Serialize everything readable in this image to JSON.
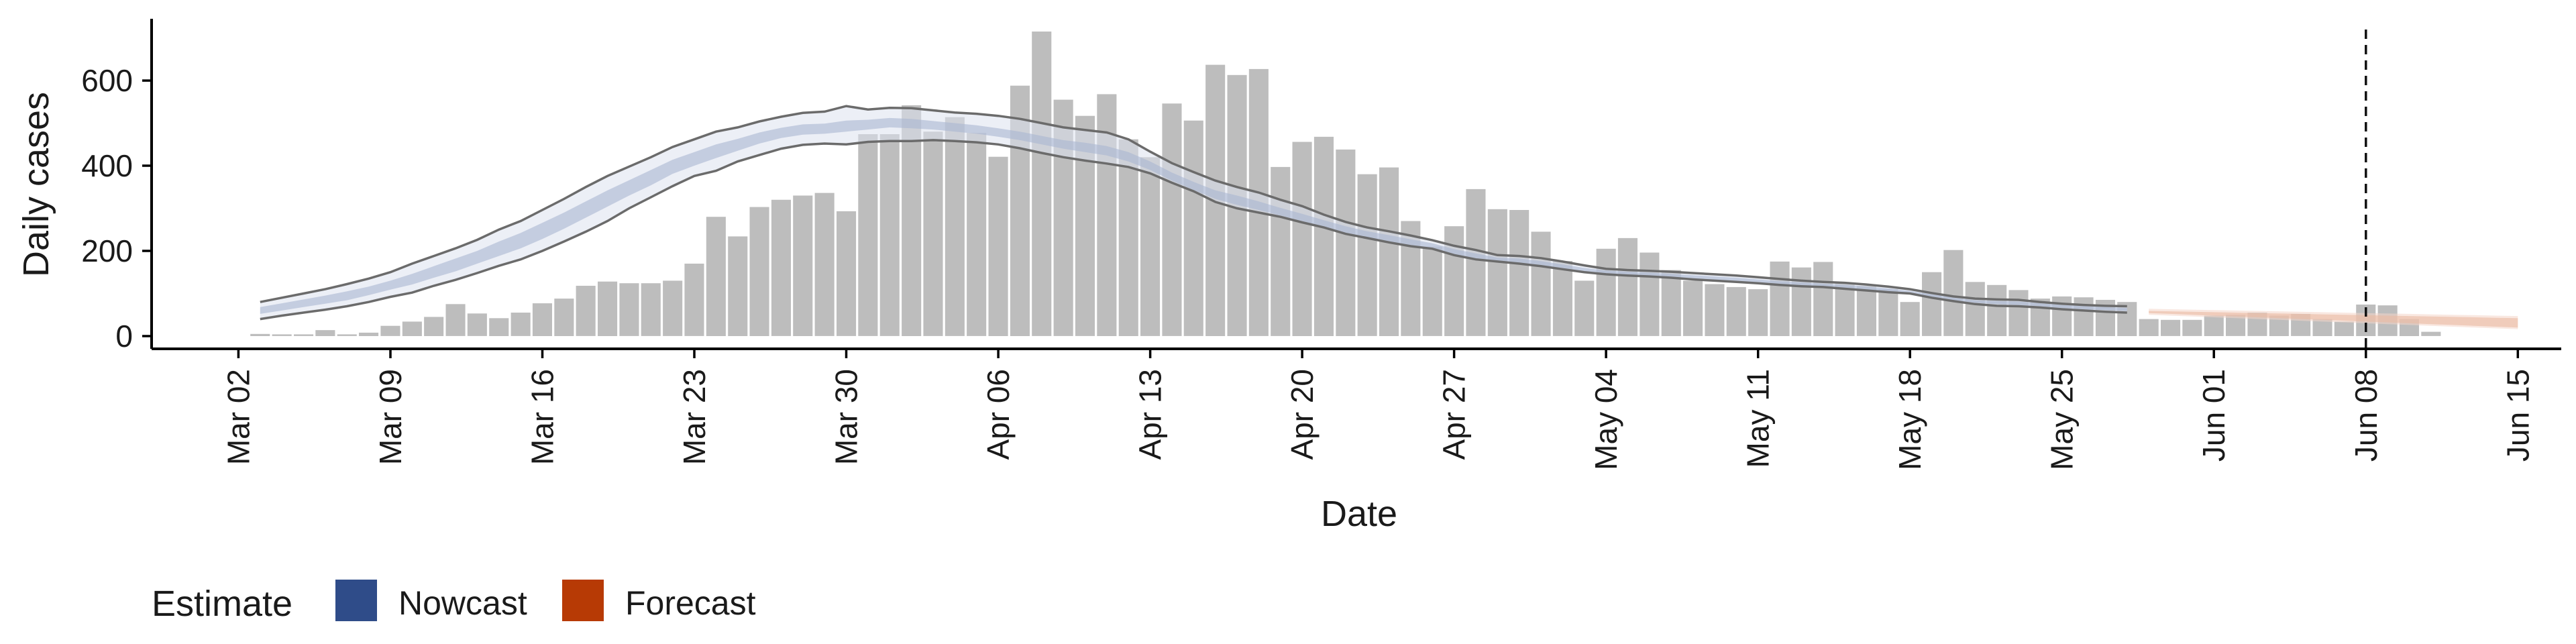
{
  "chart_data": {
    "type": "bar",
    "xlabel": "Date",
    "ylabel": "Daily cases",
    "ylim": [
      -30,
      745
    ],
    "y_ticks": [
      0,
      200,
      400,
      600
    ],
    "x_range": [
      "2020-02-27",
      "2020-06-17"
    ],
    "x_ticks": [
      "2020-03-02",
      "2020-03-09",
      "2020-03-16",
      "2020-03-23",
      "2020-03-30",
      "2020-04-06",
      "2020-04-13",
      "2020-04-20",
      "2020-04-27",
      "2020-05-04",
      "2020-05-11",
      "2020-05-18",
      "2020-05-25",
      "2020-06-01",
      "2020-06-08",
      "2020-06-15"
    ],
    "x_tick_labels": [
      "Mar 02",
      "Mar 09",
      "Mar 16",
      "Mar 23",
      "Mar 30",
      "Apr 06",
      "Apr 13",
      "Apr 20",
      "Apr 27",
      "May 04",
      "May 11",
      "May 18",
      "May 25",
      "Jun 01",
      "Jun 08",
      "Jun 15"
    ],
    "vline_date": "2020-06-08",
    "bars": {
      "start_date": "2020-03-03",
      "color": "#bdbdbd",
      "values": [
        5,
        4,
        4,
        14,
        4,
        8,
        24,
        34,
        45,
        75,
        53,
        42,
        55,
        77,
        88,
        118,
        128,
        124,
        124,
        130,
        170,
        280,
        234,
        303,
        320,
        330,
        336,
        293,
        474,
        474,
        542,
        480,
        514,
        477,
        421,
        588,
        715,
        555,
        517,
        568,
        462,
        420,
        546,
        506,
        637,
        613,
        627,
        397,
        456,
        468,
        438,
        380,
        396,
        270,
        210,
        258,
        345,
        298,
        296,
        245,
        176,
        130,
        205,
        230,
        196,
        155,
        130,
        122,
        115,
        110,
        175,
        161,
        174,
        126,
        118,
        110,
        80,
        150,
        202,
        127,
        120,
        108,
        88,
        93,
        91,
        85,
        80,
        40,
        38,
        38,
        48,
        50,
        55,
        48,
        52,
        40,
        34,
        74,
        72,
        40,
        10
      ]
    },
    "series": [
      {
        "name": "Nowcast",
        "legend_color": "#2f4c89",
        "start_date": "2020-03-03",
        "ci90_lower": [
          40,
          48,
          55,
          62,
          70,
          80,
          92,
          102,
          118,
          132,
          148,
          165,
          180,
          200,
          222,
          245,
          270,
          300,
          326,
          352,
          376,
          388,
          410,
          425,
          440,
          449,
          452,
          450,
          456,
          458,
          458,
          460,
          458,
          455,
          450,
          441,
          430,
          420,
          412,
          405,
          397,
          382,
          360,
          340,
          315,
          300,
          290,
          280,
          267,
          255,
          240,
          230,
          220,
          211,
          205,
          190,
          180,
          175,
          170,
          164,
          157,
          150,
          145,
          142,
          140,
          137,
          133,
          130,
          127,
          124,
          120,
          117,
          115,
          111,
          107,
          103,
          100,
          90,
          82,
          75,
          71,
          70,
          67,
          63,
          60,
          57,
          55
        ],
        "ci90_upper": [
          80,
          90,
          100,
          110,
          122,
          135,
          150,
          170,
          188,
          206,
          226,
          250,
          270,
          296,
          322,
          350,
          376,
          398,
          420,
          444,
          462,
          480,
          490,
          504,
          515,
          524,
          527,
          540,
          532,
          536,
          535,
          530,
          525,
          522,
          517,
          510,
          500,
          490,
          484,
          478,
          462,
          433,
          406,
          385,
          365,
          350,
          337,
          320,
          305,
          285,
          268,
          255,
          246,
          236,
          225,
          212,
          202,
          190,
          188,
          183,
          175,
          166,
          158,
          155,
          153,
          151,
          148,
          145,
          142,
          138,
          134,
          130,
          127,
          125,
          121,
          116,
          110,
          101,
          93,
          88,
          86,
          85,
          80,
          76,
          73,
          71,
          70
        ],
        "ci50_lower": [
          52,
          60,
          68,
          76,
          84,
          96,
          109,
          121,
          137,
          152,
          170,
          188,
          206,
          228,
          252,
          278,
          304,
          330,
          354,
          381,
          400,
          418,
          435,
          452,
          465,
          473,
          475,
          480,
          485,
          490,
          488,
          485,
          480,
          475,
          468,
          460,
          450,
          440,
          432,
          424,
          410,
          390,
          365,
          343,
          322,
          308,
          296,
          283,
          270,
          256,
          243,
          232,
          222,
          213,
          206,
          192,
          182,
          176,
          172,
          166,
          158,
          150,
          146,
          143,
          140,
          138,
          134,
          131,
          128,
          124,
          121,
          118,
          115,
          112,
          108,
          104,
          100,
          91,
          84,
          78,
          75,
          73,
          70,
          66,
          63,
          61,
          59
        ],
        "ci50_upper": [
          68,
          77,
          86,
          95,
          105,
          116,
          130,
          146,
          164,
          182,
          200,
          222,
          242,
          266,
          290,
          316,
          342,
          366,
          390,
          414,
          432,
          450,
          463,
          478,
          489,
          497,
          499,
          506,
          508,
          512,
          510,
          505,
          500,
          495,
          488,
          480,
          470,
          460,
          454,
          446,
          432,
          410,
          384,
          362,
          342,
          330,
          316,
          301,
          287,
          272,
          258,
          246,
          237,
          227,
          218,
          204,
          194,
          184,
          182,
          176,
          168,
          160,
          154,
          151,
          149,
          146,
          143,
          140,
          137,
          133,
          129,
          126,
          123,
          120,
          116,
          112,
          106,
          98,
          90,
          84,
          82,
          81,
          77,
          73,
          70,
          68,
          66
        ]
      },
      {
        "name": "Forecast",
        "legend_color": "#b73a05",
        "start_date": "2020-05-29",
        "ci90_lower": [
          50,
          48,
          46,
          44,
          42,
          40,
          38,
          36,
          34,
          32,
          30,
          28,
          26,
          24,
          22,
          20,
          18,
          16
        ],
        "ci90_upper": [
          64,
          63,
          62,
          61,
          60,
          59,
          58,
          57,
          56,
          55,
          54,
          53,
          52,
          51,
          50,
          49,
          48,
          47
        ],
        "ci50_lower": [
          54,
          52,
          50,
          48,
          46,
          44,
          42,
          40,
          38,
          36,
          34,
          32,
          30,
          28,
          26,
          24,
          22,
          20
        ],
        "ci50_upper": [
          59,
          58,
          57,
          56,
          55,
          54,
          53,
          52,
          51,
          50,
          49,
          48,
          47,
          46,
          45,
          44,
          43,
          42
        ]
      }
    ],
    "legend": {
      "title": "Estimate",
      "items": [
        "Nowcast",
        "Forecast"
      ],
      "position": "bottom-left"
    },
    "grid": false
  }
}
